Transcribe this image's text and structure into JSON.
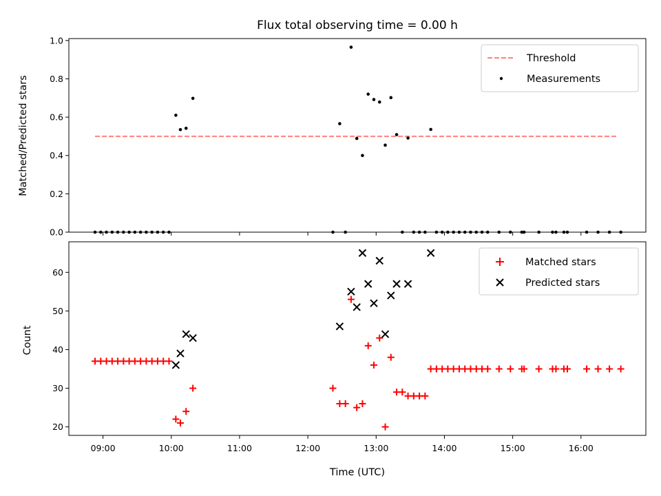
{
  "chart_data": [
    {
      "type": "scatter",
      "title": "Flux total observing time = 0.00 h",
      "ylabel": "Matched/Predicted stars",
      "xlabel": "",
      "xlim": [
        "08:30",
        "16:57"
      ],
      "ylim": [
        0,
        1.01
      ],
      "yticks": [
        "0.0",
        "0.2",
        "0.4",
        "0.6",
        "0.8",
        "1.0"
      ],
      "yticks_values": [
        0,
        0.2,
        0.4,
        0.6,
        0.8,
        1.0
      ],
      "legend": {
        "position": "upper right"
      },
      "threshold": {
        "name": "Threshold",
        "value": 0.5,
        "x_range": [
          "08:53",
          "16:32"
        ],
        "color": "#ff8080",
        "style": "dashed"
      },
      "series": [
        {
          "name": "Measurements",
          "color": "#000000",
          "points": [
            [
              "08:53",
              0
            ],
            [
              "08:58",
              0
            ],
            [
              "09:03",
              0
            ],
            [
              "09:08",
              0
            ],
            [
              "09:13",
              0
            ],
            [
              "09:18",
              0
            ],
            [
              "09:23",
              0
            ],
            [
              "09:28",
              0
            ],
            [
              "09:33",
              0
            ],
            [
              "09:38",
              0
            ],
            [
              "09:43",
              0
            ],
            [
              "09:48",
              0
            ],
            [
              "09:53",
              0
            ],
            [
              "09:58",
              0
            ],
            [
              "10:04",
              0.61
            ],
            [
              "10:08",
              0.535
            ],
            [
              "10:13",
              0.542
            ],
            [
              "10:19",
              0.698
            ],
            [
              "12:22",
              0
            ],
            [
              "12:28",
              0.566
            ],
            [
              "12:33",
              0
            ],
            [
              "12:38",
              0.965
            ],
            [
              "12:43",
              0.489
            ],
            [
              "12:48",
              0.4
            ],
            [
              "12:53",
              0.72
            ],
            [
              "12:58",
              0.692
            ],
            [
              "13:03",
              0.679
            ],
            [
              "13:08",
              0.454
            ],
            [
              "13:13",
              0.702
            ],
            [
              "13:18",
              0.509
            ],
            [
              "13:23",
              0
            ],
            [
              "13:28",
              0.491
            ],
            [
              "13:33",
              0
            ],
            [
              "13:38",
              0
            ],
            [
              "13:43",
              0
            ],
            [
              "13:48",
              0.536
            ],
            [
              "13:53",
              0
            ],
            [
              "13:58",
              0
            ],
            [
              "14:03",
              0
            ],
            [
              "14:08",
              0
            ],
            [
              "14:13",
              0
            ],
            [
              "14:18",
              0
            ],
            [
              "14:23",
              0
            ],
            [
              "14:28",
              0
            ],
            [
              "14:33",
              0
            ],
            [
              "14:38",
              0
            ],
            [
              "14:48",
              0
            ],
            [
              "14:58",
              0
            ],
            [
              "15:08",
              0
            ],
            [
              "15:10",
              0
            ],
            [
              "15:23",
              0
            ],
            [
              "15:35",
              0
            ],
            [
              "15:38",
              0
            ],
            [
              "15:45",
              0
            ],
            [
              "15:48",
              0
            ],
            [
              "16:05",
              0
            ],
            [
              "16:15",
              0
            ],
            [
              "16:25",
              0
            ],
            [
              "16:35",
              0
            ]
          ]
        }
      ]
    },
    {
      "type": "scatter",
      "title": "",
      "ylabel": "Count",
      "xlabel": "Time (UTC)",
      "xlim": [
        "08:30",
        "16:57"
      ],
      "ylim": [
        17.8,
        67.9
      ],
      "xticks": [
        "09:00",
        "10:00",
        "11:00",
        "12:00",
        "13:00",
        "14:00",
        "15:00",
        "16:00"
      ],
      "yticks": [
        "20",
        "30",
        "40",
        "50",
        "60"
      ],
      "yticks_values": [
        20,
        30,
        40,
        50,
        60
      ],
      "legend": {
        "position": "upper right"
      },
      "series": [
        {
          "name": "Matched stars",
          "color": "#ff0000",
          "marker": "plus",
          "points": [
            [
              "08:53",
              37
            ],
            [
              "08:58",
              37
            ],
            [
              "09:03",
              37
            ],
            [
              "09:08",
              37
            ],
            [
              "09:13",
              37
            ],
            [
              "09:18",
              37
            ],
            [
              "09:23",
              37
            ],
            [
              "09:28",
              37
            ],
            [
              "09:33",
              37
            ],
            [
              "09:38",
              37
            ],
            [
              "09:43",
              37
            ],
            [
              "09:48",
              37
            ],
            [
              "09:53",
              37
            ],
            [
              "09:58",
              37
            ],
            [
              "10:04",
              22
            ],
            [
              "10:08",
              21
            ],
            [
              "10:13",
              24
            ],
            [
              "10:19",
              30
            ],
            [
              "12:22",
              30
            ],
            [
              "12:28",
              26
            ],
            [
              "12:33",
              26
            ],
            [
              "12:38",
              53
            ],
            [
              "12:43",
              25
            ],
            [
              "12:48",
              26
            ],
            [
              "12:53",
              41
            ],
            [
              "12:58",
              36
            ],
            [
              "13:03",
              43
            ],
            [
              "13:08",
              20
            ],
            [
              "13:13",
              38
            ],
            [
              "13:18",
              29
            ],
            [
              "13:23",
              29
            ],
            [
              "13:28",
              28
            ],
            [
              "13:33",
              28
            ],
            [
              "13:38",
              28
            ],
            [
              "13:43",
              28
            ],
            [
              "13:48",
              35
            ],
            [
              "13:53",
              35
            ],
            [
              "13:58",
              35
            ],
            [
              "14:03",
              35
            ],
            [
              "14:08",
              35
            ],
            [
              "14:13",
              35
            ],
            [
              "14:18",
              35
            ],
            [
              "14:23",
              35
            ],
            [
              "14:28",
              35
            ],
            [
              "14:33",
              35
            ],
            [
              "14:38",
              35
            ],
            [
              "14:48",
              35
            ],
            [
              "14:58",
              35
            ],
            [
              "15:08",
              35
            ],
            [
              "15:10",
              35
            ],
            [
              "15:23",
              35
            ],
            [
              "15:35",
              35
            ],
            [
              "15:38",
              35
            ],
            [
              "15:45",
              35
            ],
            [
              "15:48",
              35
            ],
            [
              "16:05",
              35
            ],
            [
              "16:15",
              35
            ],
            [
              "16:25",
              35
            ],
            [
              "16:35",
              35
            ]
          ]
        },
        {
          "name": "Predicted stars",
          "color": "#000000",
          "marker": "x",
          "points": [
            [
              "10:04",
              36
            ],
            [
              "10:08",
              39
            ],
            [
              "10:13",
              44
            ],
            [
              "10:19",
              43
            ],
            [
              "12:28",
              46
            ],
            [
              "12:38",
              55
            ],
            [
              "12:43",
              51
            ],
            [
              "12:48",
              65
            ],
            [
              "12:53",
              57
            ],
            [
              "12:58",
              52
            ],
            [
              "13:03",
              63
            ],
            [
              "13:08",
              44
            ],
            [
              "13:13",
              54
            ],
            [
              "13:18",
              57
            ],
            [
              "13:28",
              57
            ],
            [
              "13:48",
              65
            ]
          ]
        }
      ]
    }
  ]
}
